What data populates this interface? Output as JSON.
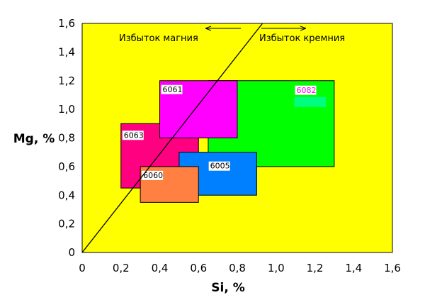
{
  "chart_data": {
    "type": "area",
    "xlabel": "Si, %",
    "ylabel": "Mg, %",
    "xlim": [
      0,
      1.6
    ],
    "ylim": [
      0,
      1.6
    ],
    "x_ticks": [
      "0",
      "0,2",
      "0,4",
      "0,6",
      "0,8",
      "1,0",
      "1,2",
      "1,4",
      "1,6"
    ],
    "y_ticks": [
      "0",
      "0,2",
      "0,4",
      "0,6",
      "0,8",
      "1,0",
      "1,2",
      "1,4",
      "1,6"
    ],
    "grid": false,
    "plot_background": "#ffff00",
    "regions": [
      {
        "alloy": "6082",
        "si": [
          0.65,
          1.3
        ],
        "mg": [
          0.6,
          1.2
        ],
        "color": "#00ff00",
        "label_color": "#ff00ff"
      },
      {
        "alloy": "6063",
        "si": [
          0.2,
          0.6
        ],
        "mg": [
          0.45,
          0.9
        ],
        "color": "#ff0080",
        "label_color": "#000000"
      },
      {
        "alloy": "6061",
        "si": [
          0.4,
          0.8
        ],
        "mg": [
          0.8,
          1.2
        ],
        "color": "#ff00ff",
        "label_color": "#000000"
      },
      {
        "alloy": "6005",
        "si": [
          0.5,
          0.9
        ],
        "mg": [
          0.4,
          0.7
        ],
        "color": "#0080ff",
        "label_color": "#000000"
      },
      {
        "alloy": "6060",
        "si": [
          0.3,
          0.6
        ],
        "mg": [
          0.35,
          0.6
        ],
        "color": "#ff8040",
        "label_color": "#000000"
      }
    ],
    "stoichiometric_line": {
      "points": [
        [
          0,
          0
        ],
        [
          0.93,
          1.6
        ]
      ],
      "color": "#000000"
    },
    "annotations": [
      {
        "text": "Избыток магния",
        "arrow": "left"
      },
      {
        "text": "Избыток кремния",
        "arrow": "right"
      }
    ]
  }
}
